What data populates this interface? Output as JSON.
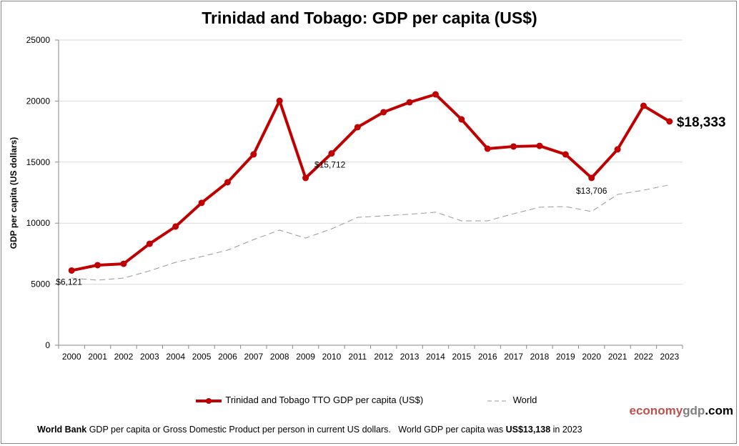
{
  "chart_data": {
    "type": "line",
    "title": "Trinidad and Tobago: GDP per capita (US$)",
    "ylabel": "GDP per capita (US dollars)",
    "xlabel": "",
    "ylim": [
      0,
      25000
    ],
    "yticks": [
      "0",
      "5000",
      "10000",
      "15000",
      "20000",
      "25000"
    ],
    "grid": true,
    "legend": "bottom",
    "categories": [
      "2000",
      "2001",
      "2002",
      "2003",
      "2004",
      "2005",
      "2006",
      "2007",
      "2008",
      "2009",
      "2010",
      "2011",
      "2012",
      "2013",
      "2014",
      "2015",
      "2016",
      "2017",
      "2018",
      "2019",
      "2020",
      "2021",
      "2022",
      "2023"
    ],
    "series": [
      {
        "name": "Trinidad and Tobago TTO GDP per capita (US$)",
        "color": "#c00000",
        "style": "solid-markers",
        "values": [
          6121,
          6560,
          6670,
          8310,
          9720,
          11660,
          13350,
          15630,
          20020,
          13700,
          15712,
          17860,
          19090,
          19900,
          20550,
          18500,
          16100,
          16280,
          16330,
          15630,
          13706,
          16040,
          19610,
          18333
        ]
      },
      {
        "name": "World",
        "color": "#999999",
        "style": "dashed",
        "values": [
          5500,
          5330,
          5500,
          6090,
          6790,
          7260,
          7790,
          8650,
          9430,
          8780,
          9530,
          10470,
          10600,
          10730,
          10900,
          10190,
          10190,
          10770,
          11300,
          11360,
          10950,
          12350,
          12700,
          13138
        ]
      }
    ],
    "annotations": [
      {
        "year": "2000",
        "text": "$6,121"
      },
      {
        "year": "2010",
        "text": "$15,712"
      },
      {
        "year": "2020",
        "text": "$13,706"
      },
      {
        "year": "2023",
        "text": "$18,333"
      }
    ]
  },
  "logo": {
    "part1": "economy",
    "part2": "gdp",
    "part3": ".com"
  },
  "footer": {
    "source": "World Bank",
    "text1": " GDP per capita or Gross Domestic Product per person in current US dollars.   World GDP per capita was ",
    "world_value": "US$13,138",
    "text2": " in 2023"
  }
}
